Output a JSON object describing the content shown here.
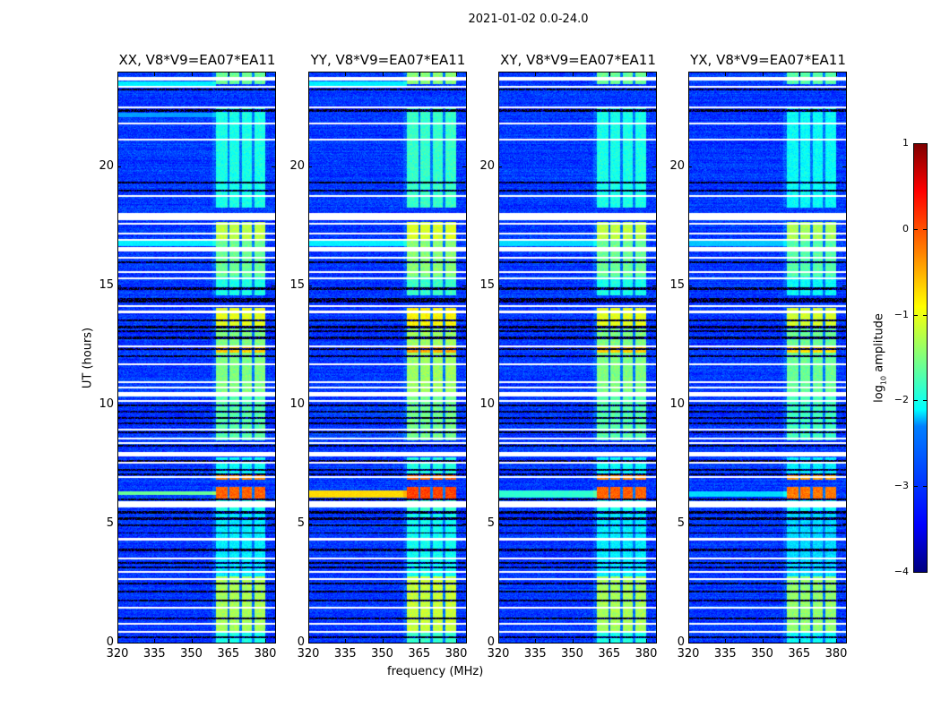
{
  "suptitle": "2021-01-02 0.0-24.0",
  "chart_data": {
    "type": "heatmap",
    "xlabel": "frequency (MHz)",
    "ylabel": "UT (hours)",
    "xlim": [
      320,
      384
    ],
    "ylim": [
      0,
      24
    ],
    "xticks": [
      "320",
      "335",
      "350",
      "365",
      "380"
    ],
    "yticks": [
      "0",
      "5",
      "10",
      "15",
      "20"
    ],
    "colorbar": {
      "label_main": "log",
      "label_sub": "10",
      "label_rest": " amplitude",
      "clim": [
        -4,
        1
      ],
      "ticks": [
        "1",
        "0",
        "−1",
        "−2",
        "−3",
        "−4"
      ],
      "colormap": "jet"
    },
    "background_level": -3.1,
    "rfi_band_mhz": [
      360,
      380
    ],
    "subband_edges_mhz": [
      365,
      370,
      375
    ],
    "band_segments": [
      {
        "t0": 23.5,
        "t1": 24.0,
        "level": -1.6
      },
      {
        "t0": 18.3,
        "t1": 22.5,
        "level": -2.0
      },
      {
        "t0": 16.9,
        "t1": 17.7,
        "level": -1.2
      },
      {
        "t0": 15.4,
        "t1": 16.9,
        "level": -1.6
      },
      {
        "t0": 14.6,
        "t1": 15.4,
        "level": -2.0
      },
      {
        "t0": 13.3,
        "t1": 14.1,
        "level": -1.0
      },
      {
        "t0": 12.45,
        "t1": 13.3,
        "level": -1.5
      },
      {
        "t0": 12.2,
        "t1": 12.45,
        "level": -0.6
      },
      {
        "t0": 10.5,
        "t1": 12.2,
        "level": -1.5
      },
      {
        "t0": 8.5,
        "t1": 10.4,
        "level": -1.7
      },
      {
        "t0": 7.1,
        "t1": 7.8,
        "level": -2.1
      },
      {
        "t0": 6.85,
        "t1": 7.1,
        "level": -0.3
      },
      {
        "t0": 6.05,
        "t1": 6.55,
        "level": -0.1
      },
      {
        "t0": 5.5,
        "t1": 6.05,
        "level": -2.0
      },
      {
        "t0": 2.8,
        "t1": 5.5,
        "level": -2.2
      },
      {
        "t0": 0.4,
        "t1": 2.8,
        "level": -1.3
      },
      {
        "t0": 0.0,
        "t1": 0.4,
        "level": -2.0
      }
    ],
    "flagged_rows_hours": [
      [
        23.65,
        23.8
      ],
      [
        23.35,
        23.45
      ],
      [
        22.5,
        22.58
      ],
      [
        21.8,
        21.88
      ],
      [
        21.12,
        21.2
      ],
      [
        18.76,
        18.84
      ],
      [
        17.8,
        18.09
      ],
      [
        17.6,
        17.68
      ],
      [
        17.18,
        17.26
      ],
      [
        16.92,
        17.0
      ],
      [
        16.47,
        16.66
      ],
      [
        16.17,
        16.25
      ],
      [
        15.57,
        15.65
      ],
      [
        15.31,
        15.39
      ],
      [
        14.11,
        14.19
      ],
      [
        13.88,
        13.96
      ],
      [
        12.42,
        12.5
      ],
      [
        11.67,
        11.75
      ],
      [
        10.92,
        11.0
      ],
      [
        10.69,
        10.77
      ],
      [
        10.36,
        10.54
      ],
      [
        10.13,
        10.21
      ],
      [
        8.93,
        9.01
      ],
      [
        8.55,
        8.63
      ],
      [
        8.37,
        8.45
      ],
      [
        7.84,
        8.03
      ],
      [
        7.54,
        7.62
      ],
      [
        6.94,
        7.02
      ],
      [
        5.7,
        5.97
      ],
      [
        4.31,
        4.39
      ],
      [
        3.49,
        3.57
      ],
      [
        2.92,
        3.0
      ],
      [
        2.62,
        2.7
      ],
      [
        1.42,
        1.5
      ],
      [
        0.75,
        0.83
      ],
      [
        0.41,
        0.49
      ]
    ],
    "dark_rows_hours": [
      [
        23.26,
        23.33
      ],
      [
        22.36,
        22.44
      ],
      [
        19.32,
        19.4
      ],
      [
        18.98,
        19.06
      ],
      [
        15.98,
        16.06
      ],
      [
        14.86,
        14.94
      ],
      [
        14.3,
        14.52
      ],
      [
        13.54,
        13.62
      ],
      [
        13.24,
        13.32
      ],
      [
        13.06,
        13.14
      ],
      [
        12.79,
        12.87
      ],
      [
        12.31,
        12.39
      ],
      [
        12.01,
        12.09
      ],
      [
        9.94,
        10.02
      ],
      [
        9.68,
        9.76
      ],
      [
        9.42,
        9.5
      ],
      [
        9.19,
        9.27
      ],
      [
        8.82,
        8.9
      ],
      [
        8.25,
        8.33
      ],
      [
        7.61,
        7.69
      ],
      [
        7.24,
        7.32
      ],
      [
        7.05,
        7.13
      ],
      [
        6.0,
        6.08
      ],
      [
        5.44,
        5.52
      ],
      [
        5.18,
        5.26
      ],
      [
        4.91,
        4.99
      ],
      [
        4.58,
        4.65
      ],
      [
        3.86,
        3.94
      ],
      [
        3.3,
        3.38
      ],
      [
        3.11,
        3.19
      ],
      [
        2.44,
        2.52
      ],
      [
        2.1,
        2.18
      ],
      [
        1.72,
        1.8
      ],
      [
        0.97,
        1.05
      ],
      [
        0.19,
        0.27
      ]
    ],
    "panels": [
      {
        "title": "XX, V8*V9=EA07*EA11",
        "band_gain": 0.0,
        "full_width_rows": [
          {
            "t0": 23.45,
            "t1": 23.62,
            "level": -2.2
          },
          {
            "t0": 22.1,
            "t1": 22.3,
            "level": -2.6
          },
          {
            "t0": 16.7,
            "t1": 16.9,
            "level": -2.2
          },
          {
            "t0": 6.2,
            "t1": 6.35,
            "level": -1.6
          }
        ]
      },
      {
        "title": "YY, V8*V9=EA07*EA11",
        "band_gain": 0.15,
        "full_width_rows": [
          {
            "t0": 23.45,
            "t1": 23.62,
            "level": -2.2
          },
          {
            "t0": 16.7,
            "t1": 16.9,
            "level": -2.2
          },
          {
            "t0": 6.1,
            "t1": 6.4,
            "level": -0.7
          }
        ]
      },
      {
        "title": "XY, V8*V9=EA07*EA11",
        "band_gain": 0.0,
        "full_width_rows": [
          {
            "t0": 16.7,
            "t1": 16.9,
            "level": -2.3
          },
          {
            "t0": 6.1,
            "t1": 6.4,
            "level": -1.9
          }
        ]
      },
      {
        "title": "YX, V8*V9=EA07*EA11",
        "band_gain": -0.1,
        "full_width_rows": [
          {
            "t0": 16.7,
            "t1": 16.9,
            "level": -2.4
          },
          {
            "t0": 6.15,
            "t1": 6.35,
            "level": -2.3
          }
        ]
      }
    ]
  }
}
